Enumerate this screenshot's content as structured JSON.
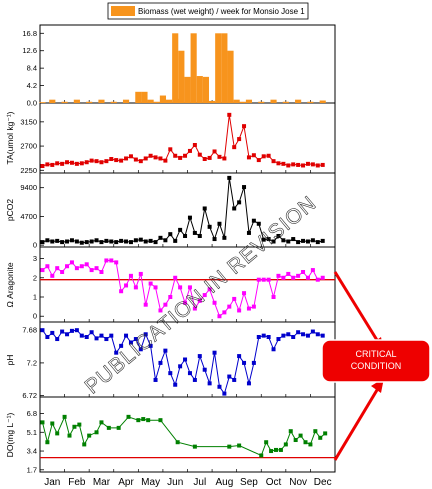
{
  "watermark": "PUBLICATION IN REVISION",
  "callout": {
    "line1": "CRITICAL",
    "line2": "CONDITION",
    "color": "#ee0000"
  },
  "chart_data": {
    "type": "multi-panel time series (bar + line)",
    "x_ticks": [
      "Jan",
      "Feb",
      "Mar",
      "Apr",
      "May",
      "Jun",
      "Jul",
      "Aug",
      "Sep",
      "Oct",
      "Nov",
      "Dec"
    ],
    "panels": [
      {
        "id": "biomass",
        "type": "bar",
        "color": "#f7941d",
        "legend": "Biomass (wet weight) / week for Monsio Jose 1",
        "ylabel": "",
        "ylim": [
          0,
          18.8
        ],
        "yticks": [
          0.0,
          4.2,
          8.4,
          12.6,
          16.8
        ],
        "x": [
          0.1,
          0.5,
          1.0,
          1.5,
          2.0,
          2.5,
          3.0,
          3.5,
          4.0,
          4.25,
          4.5,
          4.75,
          5.0,
          5.25,
          5.5,
          5.6,
          5.75,
          6.0,
          6.25,
          6.5,
          6.75,
          7.0,
          7.25,
          7.5,
          7.75,
          8.0,
          8.25,
          8.5,
          9.0,
          9.5,
          10.0,
          10.5,
          11.0,
          11.5
        ],
        "values": [
          0.2,
          0.8,
          0.3,
          0.8,
          0.3,
          0.8,
          0.3,
          0.8,
          2.7,
          2.7,
          0.8,
          0.3,
          1.8,
          0.8,
          16.8,
          1.0,
          12.6,
          6.3,
          16.8,
          6.5,
          6.3,
          0.5,
          16.8,
          16.8,
          12.6,
          0.8,
          0.3,
          0.8,
          0.3,
          0.8,
          0.3,
          0.8,
          0.3,
          0.6
        ]
      },
      {
        "id": "ta",
        "type": "line",
        "color": "#e00000",
        "ylabel": "TA(umol kg⁻¹)",
        "ylim": [
          2200,
          3500
        ],
        "yticks": [
          2250,
          2700,
          3150
        ],
        "x": [
          0.1,
          0.3,
          0.5,
          0.7,
          0.9,
          1.1,
          1.3,
          1.5,
          1.7,
          1.9,
          2.1,
          2.3,
          2.5,
          2.7,
          2.9,
          3.1,
          3.3,
          3.5,
          3.7,
          3.9,
          4.1,
          4.3,
          4.5,
          4.7,
          4.9,
          5.1,
          5.3,
          5.5,
          5.7,
          5.9,
          6.1,
          6.3,
          6.5,
          6.7,
          6.9,
          7.1,
          7.3,
          7.5,
          7.7,
          7.9,
          8.1,
          8.3,
          8.5,
          8.7,
          8.9,
          9.1,
          9.3,
          9.5,
          9.7,
          9.9,
          10.1,
          10.3,
          10.5,
          10.7,
          10.9,
          11.1,
          11.3,
          11.5
        ],
        "values": [
          2330,
          2360,
          2350,
          2380,
          2370,
          2400,
          2390,
          2370,
          2380,
          2400,
          2430,
          2420,
          2400,
          2420,
          2460,
          2440,
          2430,
          2470,
          2510,
          2450,
          2420,
          2470,
          2520,
          2490,
          2470,
          2430,
          2640,
          2520,
          2480,
          2520,
          2610,
          2720,
          2540,
          2460,
          2480,
          2600,
          2500,
          2470,
          3280,
          2680,
          2830,
          3070,
          2490,
          2530,
          2440,
          2510,
          2520,
          2420,
          2380,
          2370,
          2340,
          2360,
          2350,
          2340,
          2370,
          2360,
          2340,
          2350
        ]
      },
      {
        "id": "pco2",
        "type": "line",
        "color": "#000000",
        "ylabel": "pCO2",
        "ylim": [
          -300,
          11800
        ],
        "yticks": [
          0,
          4700,
          9400
        ],
        "x": [
          0.1,
          0.3,
          0.5,
          0.7,
          0.9,
          1.1,
          1.3,
          1.5,
          1.7,
          1.9,
          2.1,
          2.3,
          2.5,
          2.7,
          2.9,
          3.1,
          3.3,
          3.5,
          3.7,
          3.9,
          4.1,
          4.3,
          4.5,
          4.7,
          4.9,
          5.1,
          5.3,
          5.5,
          5.7,
          5.9,
          6.1,
          6.3,
          6.5,
          6.7,
          6.9,
          7.1,
          7.3,
          7.5,
          7.7,
          7.9,
          8.1,
          8.3,
          8.5,
          8.7,
          8.9,
          9.1,
          9.3,
          9.5,
          9.7,
          9.9,
          10.1,
          10.3,
          10.5,
          10.7,
          10.9,
          11.1,
          11.3,
          11.5
        ],
        "values": [
          500,
          800,
          600,
          700,
          500,
          600,
          800,
          600,
          400,
          500,
          600,
          800,
          500,
          700,
          600,
          500,
          700,
          600,
          500,
          800,
          900,
          600,
          700,
          500,
          1200,
          800,
          1800,
          700,
          2500,
          1500,
          4500,
          2000,
          1500,
          6000,
          3000,
          1000,
          3500,
          1200,
          11000,
          6000,
          7000,
          9500,
          2000,
          4000,
          3500,
          900,
          1000,
          600,
          1500,
          800,
          600,
          1000,
          500,
          700,
          600,
          800,
          500,
          700
        ]
      },
      {
        "id": "arag",
        "type": "line",
        "color": "#ff00ff",
        "ylabel": "Ω Aragonite",
        "ylim": [
          -0.3,
          3.6
        ],
        "yticks": [
          0,
          1,
          2,
          3
        ],
        "threshold": 1.9,
        "x": [
          0.1,
          0.3,
          0.5,
          0.7,
          0.9,
          1.1,
          1.3,
          1.5,
          1.7,
          1.9,
          2.1,
          2.3,
          2.5,
          2.7,
          2.9,
          3.1,
          3.3,
          3.5,
          3.7,
          3.9,
          4.1,
          4.3,
          4.5,
          4.7,
          4.9,
          5.1,
          5.3,
          5.5,
          5.7,
          5.9,
          6.1,
          6.3,
          6.5,
          6.7,
          6.9,
          7.1,
          7.3,
          7.5,
          7.7,
          7.9,
          8.1,
          8.3,
          8.5,
          8.7,
          8.9,
          9.1,
          9.3,
          9.5,
          9.7,
          9.9,
          10.1,
          10.3,
          10.5,
          10.7,
          10.9,
          11.1,
          11.3,
          11.5
        ],
        "values": [
          2.4,
          2.6,
          2.1,
          2.5,
          2.3,
          2.6,
          2.8,
          2.5,
          2.6,
          2.7,
          2.4,
          2.5,
          2.3,
          2.9,
          2.9,
          2.8,
          1.3,
          1.6,
          2.1,
          1.5,
          2.2,
          0.6,
          1.7,
          1.5,
          0.3,
          0.6,
          1.0,
          2.0,
          1.5,
          0.7,
          1.5,
          0.4,
          0.8,
          1.1,
          1.4,
          0.7,
          0.0,
          0.2,
          0.5,
          0.9,
          0.3,
          1.2,
          0.4,
          0.5,
          1.9,
          1.9,
          1.9,
          1.0,
          2.1,
          2.0,
          2.2,
          2.0,
          2.1,
          2.3,
          2.0,
          2.4,
          1.9,
          2.0
        ]
      },
      {
        "id": "ph",
        "type": "line",
        "color": "#0000cc",
        "ylabel": "pH",
        "ylim": [
          6.7,
          7.8
        ],
        "yticks": [
          6.72,
          7.2,
          7.68
        ],
        "x": [
          0.1,
          0.3,
          0.5,
          0.7,
          0.9,
          1.1,
          1.3,
          1.5,
          1.7,
          1.9,
          2.1,
          2.3,
          2.5,
          2.7,
          2.9,
          3.1,
          3.3,
          3.5,
          3.7,
          3.9,
          4.1,
          4.3,
          4.5,
          4.7,
          4.9,
          5.1,
          5.3,
          5.5,
          5.7,
          5.9,
          6.1,
          6.3,
          6.5,
          6.7,
          6.9,
          7.1,
          7.3,
          7.5,
          7.7,
          7.9,
          8.1,
          8.3,
          8.5,
          8.7,
          8.9,
          9.1,
          9.3,
          9.5,
          9.7,
          9.9,
          10.1,
          10.3,
          10.5,
          10.7,
          10.9,
          11.1,
          11.3,
          11.5
        ],
        "values": [
          7.68,
          7.58,
          7.64,
          7.55,
          7.66,
          7.62,
          7.67,
          7.68,
          7.6,
          7.58,
          7.65,
          7.56,
          7.6,
          7.55,
          7.6,
          7.35,
          7.45,
          7.6,
          7.5,
          7.55,
          7.4,
          7.62,
          7.45,
          6.95,
          7.2,
          7.38,
          7.05,
          6.88,
          7.15,
          7.25,
          7.05,
          6.95,
          7.3,
          7.1,
          6.9,
          7.35,
          6.85,
          6.75,
          7.0,
          6.95,
          7.3,
          7.2,
          6.9,
          7.2,
          7.58,
          7.6,
          7.58,
          7.4,
          7.55,
          7.6,
          7.62,
          7.58,
          7.65,
          7.62,
          7.6,
          7.66,
          7.62,
          7.6
        ]
      },
      {
        "id": "do",
        "type": "line",
        "color": "#008000",
        "ylabel": "DO(mg L⁻¹)",
        "ylim": [
          1.5,
          8.3
        ],
        "yticks": [
          1.7,
          3.4,
          5.1,
          6.8
        ],
        "threshold": 2.8,
        "x": [
          0.1,
          0.3,
          0.5,
          0.7,
          1.0,
          1.2,
          1.4,
          1.6,
          1.8,
          2.0,
          2.3,
          2.5,
          2.8,
          3.2,
          3.6,
          4.0,
          4.2,
          4.4,
          4.9,
          5.6,
          6.3,
          7.7,
          8.1,
          9.0,
          9.2,
          9.4,
          9.6,
          9.8,
          10.0,
          10.2,
          10.4,
          10.6,
          10.8,
          11.0,
          11.2,
          11.4,
          11.6
        ],
        "values": [
          6.0,
          4.2,
          5.9,
          5.0,
          6.5,
          4.8,
          5.6,
          5.8,
          4.0,
          4.8,
          5.1,
          6.0,
          5.5,
          5.5,
          6.5,
          6.2,
          6.3,
          6.2,
          6.2,
          4.2,
          3.8,
          3.8,
          3.9,
          3.0,
          4.2,
          3.4,
          3.5,
          3.5,
          4.0,
          5.2,
          4.4,
          4.8,
          4.2,
          4.0,
          5.2,
          4.6,
          5.0
        ]
      }
    ]
  }
}
